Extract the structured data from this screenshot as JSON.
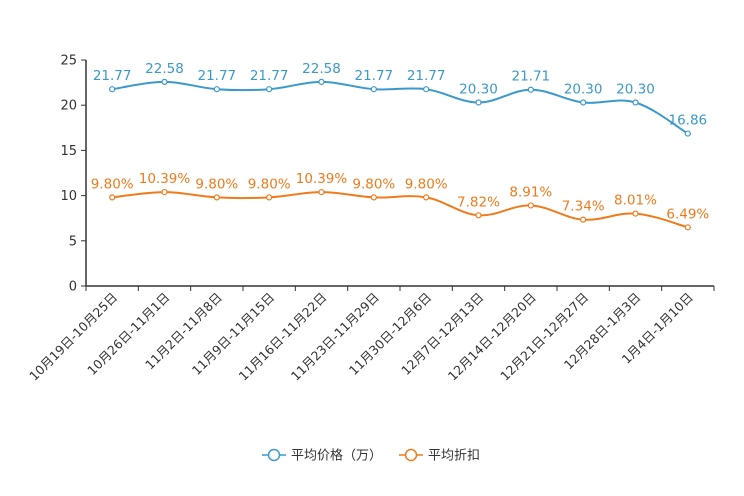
{
  "chart_data": {
    "type": "line",
    "title": "",
    "xlabel": "",
    "ylabel": "",
    "ylim": [
      0,
      25
    ],
    "yticks": [
      0,
      5,
      10,
      15,
      20,
      25
    ],
    "grid": false,
    "legend_position": "bottom-center",
    "categories": [
      "10月19日-10月25日",
      "10月26日-11月1日",
      "11月2日-11月8日",
      "11月9日-11月15日",
      "11月16日-11月22日",
      "11月23日-11月29日",
      "11月30日-12月6日",
      "12月7日-12月13日",
      "12月14日-12月20日",
      "12月21日-12月27日",
      "12月28日-1月3日",
      "1月4日-1月10日"
    ],
    "series": [
      {
        "name": "平均价格（万）",
        "color": "#3b9acb",
        "values": [
          21.77,
          22.58,
          21.77,
          21.77,
          22.58,
          21.77,
          21.77,
          20.3,
          21.71,
          20.3,
          20.3,
          16.86
        ],
        "labels": [
          "21.77",
          "22.58",
          "21.77",
          "21.77",
          "22.58",
          "21.77",
          "21.77",
          "20.30",
          "21.71",
          "20.30",
          "20.30",
          "16.86"
        ]
      },
      {
        "name": "平均折扣",
        "color": "#f07b1c",
        "values": [
          9.8,
          10.39,
          9.8,
          9.8,
          10.39,
          9.8,
          9.8,
          7.82,
          8.91,
          7.34,
          8.01,
          6.49
        ],
        "labels": [
          "9.80%",
          "10.39%",
          "9.80%",
          "9.80%",
          "10.39%",
          "9.80%",
          "9.80%",
          "7.82%",
          "8.91%",
          "7.34%",
          "8.01%",
          "6.49%"
        ]
      }
    ]
  }
}
